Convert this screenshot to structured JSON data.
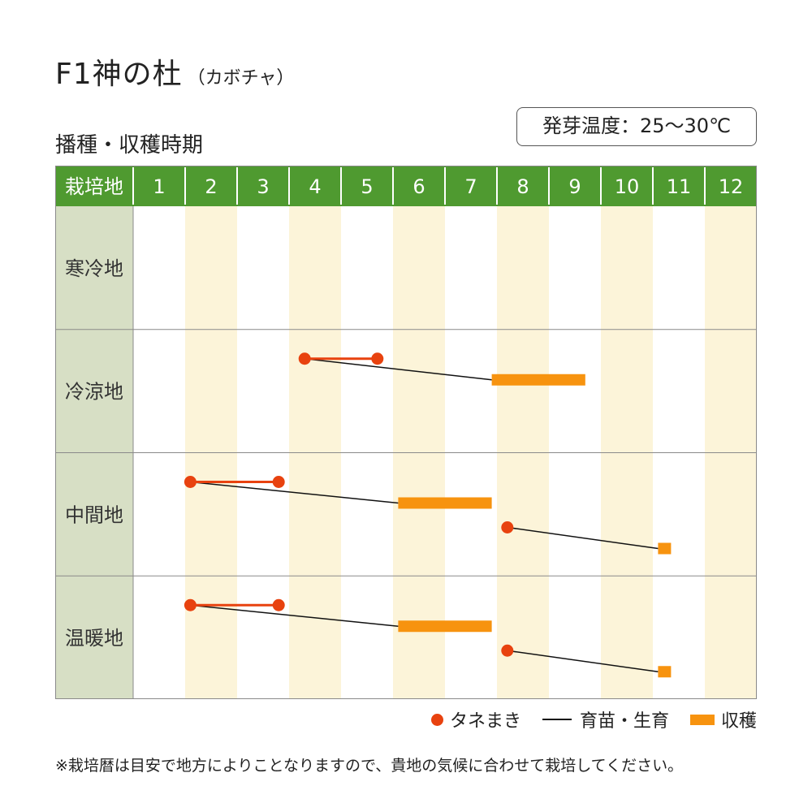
{
  "header": {
    "title": "F1神の杜",
    "title_note": "（カボチャ）",
    "subtitle": "播種・収穫時期",
    "temperature": "発芽温度：25～30℃"
  },
  "chart_data": {
    "type": "table",
    "corner_label": "栽培地",
    "months": [
      "1",
      "2",
      "3",
      "4",
      "5",
      "6",
      "7",
      "8",
      "9",
      "10",
      "11",
      "12"
    ],
    "regions": [
      {
        "name": "寒冷地",
        "schedules": []
      },
      {
        "name": "冷涼地",
        "schedules": [
          {
            "sowing": [
              4.3,
              5.7
            ],
            "harvest": [
              7.9,
              9.7
            ]
          }
        ]
      },
      {
        "name": "中間地",
        "schedules": [
          {
            "sowing": [
              2.1,
              3.8
            ],
            "harvest": [
              6.1,
              7.9
            ]
          },
          {
            "sowing": [
              8.2,
              8.2
            ],
            "harvest": [
              11.1,
              11.3
            ]
          }
        ]
      },
      {
        "name": "温暖地",
        "schedules": [
          {
            "sowing": [
              2.1,
              3.8
            ],
            "harvest": [
              6.1,
              7.9
            ]
          },
          {
            "sowing": [
              8.2,
              8.2
            ],
            "harvest": [
              11.1,
              11.3
            ]
          }
        ]
      }
    ],
    "legend": {
      "sowing": "タネまき",
      "growing": "育苗・生育",
      "harvest": "収穫"
    },
    "colors": {
      "header_bg": "#4f9a30",
      "region_bg": "#d7dfc5",
      "stripe": "#fcf4d9",
      "sowing": "#e8420f",
      "growing": "#111111",
      "harvest": "#f7930f",
      "grid": "#8a8a8a"
    }
  },
  "footnote": "※栽培暦は目安で地方によりことなりますので、貴地の気候に合わせて栽培してください。"
}
